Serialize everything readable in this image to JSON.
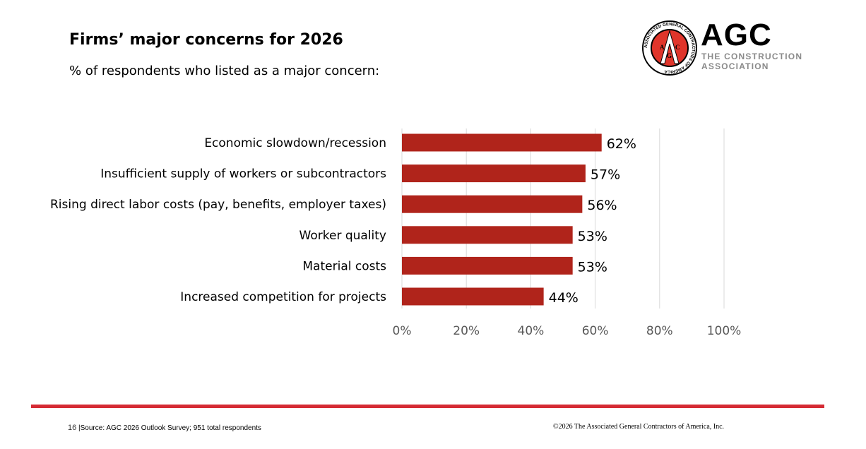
{
  "header": {
    "title": "Firms’ major concerns for 2026",
    "subtitle": "% of respondents who listed as a major concern:"
  },
  "logo": {
    "seal_text": "ASSOCIATED GENERAL CONTRACTORS OF AMERICA",
    "wordmark": "AGC",
    "tagline_1": "THE CONSTRUCTION",
    "tagline_2": "ASSOCIATION"
  },
  "chart_data": {
    "type": "bar",
    "orientation": "horizontal",
    "categories": [
      "Economic slowdown/recession",
      "Insufficient supply of workers or subcontractors",
      "Rising direct labor costs (pay, benefits, employer taxes)",
      "Worker quality",
      "Material costs",
      "Increased competition for projects"
    ],
    "values": [
      62,
      57,
      56,
      53,
      53,
      44
    ],
    "data_labels": [
      "62%",
      "57%",
      "56%",
      "53%",
      "53%",
      "44%"
    ],
    "xlim": [
      0,
      100
    ],
    "x_ticks": [
      "0%",
      "20%",
      "40%",
      "60%",
      "80%",
      "100%"
    ],
    "grid": true,
    "bar_color": "#b0241b",
    "grid_color": "#d9d9d9"
  },
  "footer": {
    "page_number": "16",
    "source": "Source: AGC 2026 Outlook Survey; 951 total respondents",
    "copyright": "©2026 The Associated General Contractors of America, Inc."
  },
  "colors": {
    "accent_rule": "#d52b34"
  }
}
